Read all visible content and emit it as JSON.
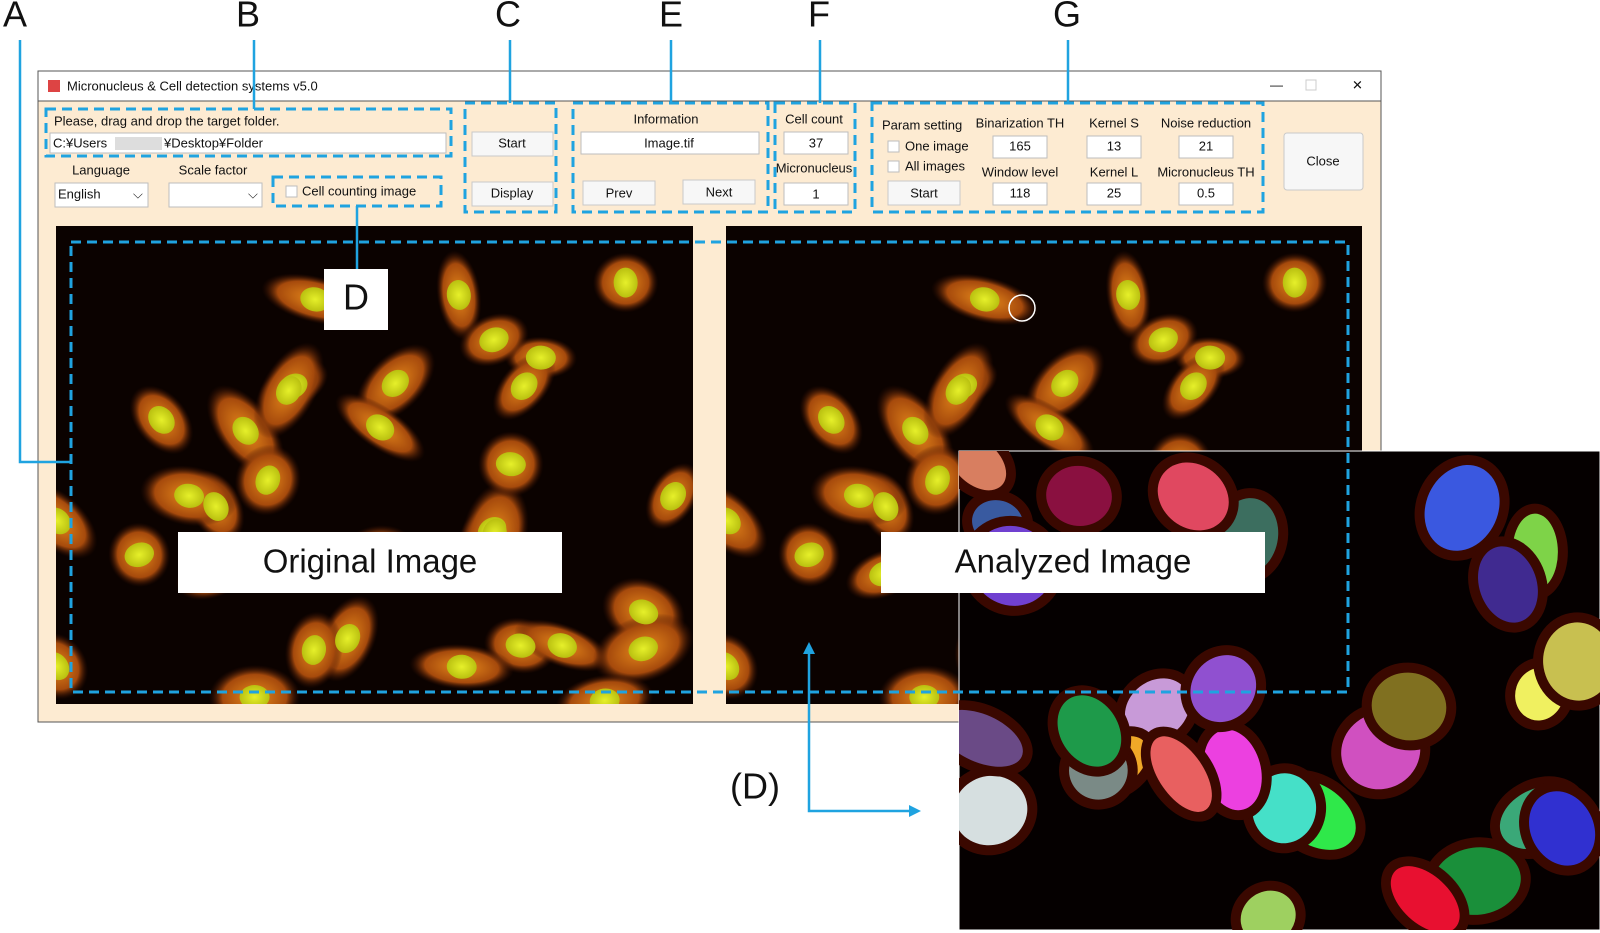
{
  "annotations": {
    "a": "A",
    "b": "B",
    "c": "C",
    "e": "E",
    "f": "F",
    "g": "G",
    "d": "D",
    "d_zoom": "(D)"
  },
  "window": {
    "title": "Micronucleus & Cell detection systems v5.0",
    "close": "Close"
  },
  "folder": {
    "prompt": "Please, drag and drop the target folder.",
    "path_start": "C:¥Users",
    "path_end": "¥Desktop¥Folder"
  },
  "options": {
    "language_label": "Language",
    "language": "English",
    "scale_label": "Scale factor",
    "cell_counting": "Cell counting image"
  },
  "run": {
    "start": "Start",
    "display": "Display"
  },
  "information": {
    "label": "Information",
    "file": "Image.tif",
    "prev": "Prev",
    "next": "Next"
  },
  "counts": {
    "cell_label": "Cell count",
    "cell": 37,
    "micronucleus_label": "Micronucleus",
    "micronucleus": 1
  },
  "params": {
    "label": "Param setting",
    "one_image": "One image",
    "all_images": "All images",
    "start": "Start",
    "binarization_label": "Binarization TH",
    "binarization": 165,
    "window_label": "Window level",
    "window": 118,
    "kernel_s_label": "Kernel S",
    "kernel_s": 13,
    "kernel_l_label": "Kernel L",
    "kernel_l": 25,
    "noise_label": "Noise reduction",
    "noise": 21,
    "mn_th_label": "Micronucleus TH",
    "mn_th": 0.5
  },
  "images": {
    "original": "Original Image",
    "analyzed": "Analyzed Image"
  }
}
